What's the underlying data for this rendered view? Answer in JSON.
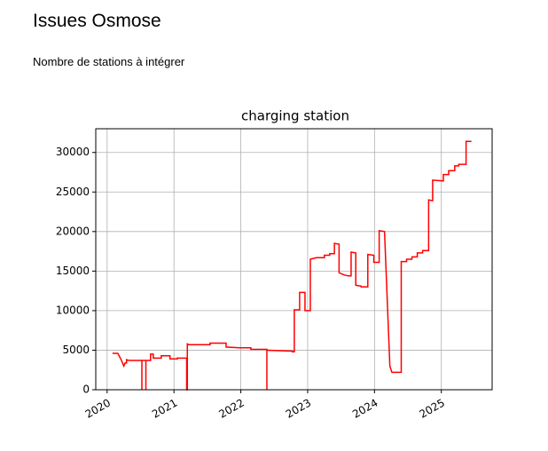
{
  "header": {
    "title": "Issues Osmose",
    "description": "Nombre de stations à intégrer"
  },
  "chart_data": {
    "type": "line",
    "title": "charging station",
    "color": "#ff0000",
    "grid": true,
    "xlim": [
      2019.83,
      2025.76
    ],
    "xticks": [
      2020,
      2021,
      2022,
      2023,
      2024,
      2025
    ],
    "ylim": [
      0,
      33000
    ],
    "yticks": [
      0,
      5000,
      10000,
      15000,
      20000,
      25000,
      30000
    ],
    "x": [
      2020.08,
      2020.16,
      2020.21,
      2020.25,
      2020.27,
      2020.29,
      2020.29,
      2020.33,
      2020.52,
      2020.52,
      2020.52,
      2020.58,
      2020.58,
      2020.58,
      2020.65,
      2020.65,
      2020.69,
      2020.69,
      2020.81,
      2020.81,
      2020.94,
      2020.94,
      2021.05,
      2021.05,
      2021.19,
      2021.19,
      2021.2,
      2021.2,
      2021.22,
      2021.54,
      2021.54,
      2021.78,
      2021.78,
      2021.98,
      2022.15,
      2022.15,
      2022.39,
      2022.39,
      2022.39,
      2022.72,
      2022.77,
      2022.77,
      2022.8,
      2022.8,
      2022.88,
      2022.88,
      2022.96,
      2022.96,
      2023.04,
      2023.04,
      2023.13,
      2023.25,
      2023.25,
      2023.33,
      2023.33,
      2023.4,
      2023.4,
      2023.47,
      2023.47,
      2023.55,
      2023.61,
      2023.65,
      2023.65,
      2023.72,
      2023.72,
      2023.8,
      2023.8,
      2023.9,
      2023.9,
      2023.99,
      2023.99,
      2024.07,
      2024.07,
      2024.15,
      2024.23,
      2024.26,
      2024.4,
      2024.4,
      2024.48,
      2024.48,
      2024.56,
      2024.56,
      2024.64,
      2024.64,
      2024.72,
      2024.72,
      2024.81,
      2024.81,
      2024.87,
      2024.87,
      2025.03,
      2025.03,
      2025.11,
      2025.11,
      2025.2,
      2025.2,
      2025.26,
      2025.26,
      2025.37,
      2025.37,
      2025.45
    ],
    "values": [
      4600,
      4600,
      3800,
      3000,
      3400,
      3400,
      3800,
      3700,
      3700,
      0,
      3700,
      3700,
      0,
      3700,
      3700,
      4500,
      4500,
      4000,
      4000,
      4300,
      4300,
      3900,
      3900,
      4000,
      4000,
      0,
      0,
      5800,
      5700,
      5700,
      5900,
      5900,
      5400,
      5300,
      5300,
      5100,
      5100,
      0,
      5000,
      4900,
      4900,
      4800,
      4800,
      10100,
      10100,
      12300,
      12300,
      10000,
      10000,
      16500,
      16700,
      16700,
      17000,
      17000,
      17200,
      17200,
      18500,
      18400,
      14800,
      14500,
      14400,
      14400,
      17400,
      17300,
      13200,
      13100,
      13000,
      13000,
      17100,
      17000,
      16100,
      16100,
      20100,
      20000,
      3000,
      2200,
      2200,
      16200,
      16200,
      16500,
      16500,
      16800,
      16800,
      17300,
      17300,
      17600,
      17600,
      24000,
      23900,
      26500,
      26400,
      27200,
      27200,
      27700,
      27700,
      28300,
      28300,
      28500,
      28500,
      31400,
      31400
    ]
  }
}
